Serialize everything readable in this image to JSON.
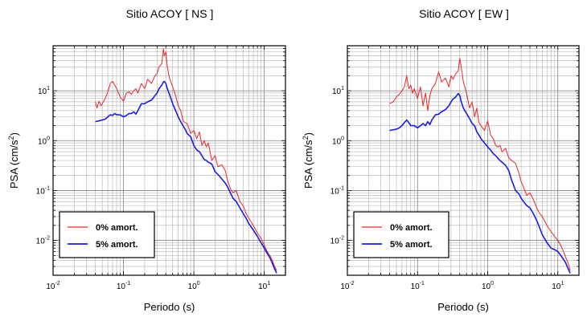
{
  "chart_data": [
    {
      "type": "line",
      "title": "Sitio ACOY [ NS ]",
      "xlabel": "Periodo (s)",
      "ylabel_main": "PSA (cm/s",
      "ylabel_exp": "2",
      "ylabel_close": ")",
      "xscale": "log",
      "yscale": "log",
      "xlim": [
        0.01,
        20
      ],
      "ylim": [
        0.002,
        80
      ],
      "grid": true,
      "legend_position": "bottom-left",
      "x_ticks": [
        {
          "base": "10",
          "exp": "-2",
          "value": 0.01
        },
        {
          "base": "10",
          "exp": "-1",
          "value": 0.1
        },
        {
          "base": "10",
          "exp": "0",
          "value": 1
        },
        {
          "base": "10",
          "exp": "1",
          "value": 10
        }
      ],
      "y_ticks": [
        {
          "base": "10",
          "exp": "-2",
          "value": 0.01
        },
        {
          "base": "10",
          "exp": "-1",
          "value": 0.1
        },
        {
          "base": "10",
          "exp": "0",
          "value": 1
        },
        {
          "base": "10",
          "exp": "1",
          "value": 10
        }
      ],
      "series": [
        {
          "name": "0% amort.",
          "color": "#e8262b",
          "x": [
            0.04,
            0.042,
            0.045,
            0.048,
            0.05,
            0.055,
            0.06,
            0.065,
            0.07,
            0.075,
            0.08,
            0.09,
            0.1,
            0.11,
            0.12,
            0.13,
            0.14,
            0.15,
            0.16,
            0.18,
            0.2,
            0.22,
            0.25,
            0.28,
            0.3,
            0.32,
            0.35,
            0.37,
            0.38,
            0.4,
            0.42,
            0.45,
            0.5,
            0.55,
            0.6,
            0.65,
            0.7,
            0.75,
            0.8,
            0.9,
            1.0,
            1.1,
            1.2,
            1.3,
            1.4,
            1.5,
            1.6,
            1.8,
            2.0,
            2.2,
            2.5,
            2.8,
            3.0,
            3.3,
            3.6,
            4.0,
            4.5,
            5.0,
            5.5,
            6.0,
            7.0,
            8.0,
            9.0,
            10.0,
            11.0,
            12.0,
            13.0,
            14.0,
            15.0
          ],
          "y": [
            6.0,
            4.5,
            6.2,
            5.0,
            5.5,
            7.0,
            9.5,
            14.0,
            15.5,
            13.0,
            11.0,
            7.5,
            6.2,
            9.0,
            9.5,
            8.5,
            10.0,
            11.0,
            9.0,
            14.0,
            11.0,
            17.0,
            14.0,
            20.0,
            22.0,
            30.0,
            35.0,
            70.0,
            50.0,
            60.0,
            30.0,
            18.0,
            12.0,
            8.0,
            5.0,
            4.0,
            2.5,
            2.3,
            2.2,
            1.4,
            1.6,
            1.1,
            1.5,
            0.8,
            1.0,
            0.75,
            0.9,
            0.4,
            0.5,
            0.3,
            0.33,
            0.25,
            0.16,
            0.11,
            0.09,
            0.1,
            0.06,
            0.05,
            0.035,
            0.028,
            0.02,
            0.014,
            0.011,
            0.008,
            0.006,
            0.005,
            0.004,
            0.003,
            0.0025
          ]
        },
        {
          "name": "5% amort.",
          "color": "#1c1ce0",
          "x": [
            0.04,
            0.045,
            0.05,
            0.055,
            0.06,
            0.065,
            0.07,
            0.075,
            0.08,
            0.09,
            0.1,
            0.11,
            0.12,
            0.13,
            0.14,
            0.15,
            0.16,
            0.18,
            0.2,
            0.22,
            0.25,
            0.28,
            0.3,
            0.32,
            0.35,
            0.37,
            0.38,
            0.4,
            0.42,
            0.45,
            0.5,
            0.55,
            0.6,
            0.65,
            0.7,
            0.75,
            0.8,
            0.9,
            1.0,
            1.1,
            1.2,
            1.3,
            1.4,
            1.5,
            1.6,
            1.8,
            2.0,
            2.2,
            2.5,
            2.8,
            3.0,
            3.3,
            3.6,
            4.0,
            4.5,
            5.0,
            5.5,
            6.0,
            7.0,
            8.0,
            9.0,
            10.0,
            11.0,
            12.0,
            13.0,
            14.0,
            15.0
          ],
          "y": [
            2.4,
            2.5,
            2.6,
            2.7,
            3.0,
            3.3,
            3.2,
            3.5,
            3.3,
            3.3,
            3.0,
            3.2,
            3.5,
            3.5,
            3.8,
            3.4,
            4.0,
            5.5,
            5.5,
            6.0,
            6.5,
            8.0,
            9.0,
            11.0,
            13.0,
            15.0,
            15.5,
            14.0,
            11.0,
            8.5,
            5.5,
            4.0,
            3.0,
            2.4,
            2.0,
            1.7,
            1.4,
            1.2,
            0.8,
            0.65,
            0.6,
            0.5,
            0.42,
            0.4,
            0.37,
            0.34,
            0.24,
            0.21,
            0.17,
            0.14,
            0.12,
            0.09,
            0.07,
            0.06,
            0.045,
            0.035,
            0.028,
            0.022,
            0.016,
            0.012,
            0.009,
            0.007,
            0.0055,
            0.0045,
            0.0035,
            0.0027,
            0.0022
          ]
        }
      ]
    },
    {
      "type": "line",
      "title": "Sitio ACOY [ EW ]",
      "xlabel": "Periodo (s)",
      "ylabel_main": "PSA (cm/s",
      "ylabel_exp": "2",
      "ylabel_close": ")",
      "xscale": "log",
      "yscale": "log",
      "xlim": [
        0.01,
        20
      ],
      "ylim": [
        0.002,
        80
      ],
      "grid": true,
      "legend_position": "bottom-left",
      "x_ticks": [
        {
          "base": "10",
          "exp": "-2",
          "value": 0.01
        },
        {
          "base": "10",
          "exp": "-1",
          "value": 0.1
        },
        {
          "base": "10",
          "exp": "0",
          "value": 1
        },
        {
          "base": "10",
          "exp": "1",
          "value": 10
        }
      ],
      "y_ticks": [
        {
          "base": "10",
          "exp": "-2",
          "value": 0.01
        },
        {
          "base": "10",
          "exp": "-1",
          "value": 0.1
        },
        {
          "base": "10",
          "exp": "0",
          "value": 1
        },
        {
          "base": "10",
          "exp": "1",
          "value": 10
        }
      ],
      "series": [
        {
          "name": "0% amort.",
          "color": "#e8262b",
          "x": [
            0.04,
            0.045,
            0.05,
            0.055,
            0.06,
            0.065,
            0.07,
            0.075,
            0.08,
            0.085,
            0.09,
            0.1,
            0.11,
            0.12,
            0.13,
            0.14,
            0.15,
            0.16,
            0.18,
            0.2,
            0.22,
            0.25,
            0.28,
            0.3,
            0.32,
            0.35,
            0.38,
            0.4,
            0.42,
            0.45,
            0.5,
            0.55,
            0.6,
            0.65,
            0.7,
            0.75,
            0.8,
            0.9,
            1.0,
            1.1,
            1.2,
            1.3,
            1.4,
            1.5,
            1.6,
            1.8,
            2.0,
            2.2,
            2.5,
            2.8,
            3.0,
            3.3,
            3.6,
            4.0,
            4.5,
            5.0,
            5.5,
            6.0,
            7.0,
            8.0,
            9.0,
            10.0,
            11.0,
            12.0,
            13.0,
            14.0,
            15.0
          ],
          "y": [
            5.5,
            6.0,
            7.5,
            8.5,
            10.0,
            12.0,
            20.0,
            11.0,
            13.0,
            9.0,
            11.0,
            7.0,
            12.0,
            5.0,
            9.0,
            4.0,
            8.0,
            11.0,
            14.0,
            24.0,
            15.0,
            18.0,
            12.0,
            20.0,
            17.0,
            22.0,
            25.0,
            45.0,
            30.0,
            15.0,
            9.0,
            4.5,
            6.0,
            3.0,
            4.5,
            2.3,
            2.0,
            1.6,
            2.5,
            1.3,
            1.1,
            0.8,
            0.75,
            0.8,
            0.6,
            0.7,
            0.45,
            0.4,
            0.35,
            0.22,
            0.15,
            0.11,
            0.08,
            0.09,
            0.065,
            0.045,
            0.035,
            0.03,
            0.02,
            0.015,
            0.012,
            0.01,
            0.008,
            0.006,
            0.0045,
            0.0035,
            0.0025
          ]
        },
        {
          "name": "5% amort.",
          "color": "#1c1ce0",
          "x": [
            0.04,
            0.045,
            0.05,
            0.055,
            0.06,
            0.065,
            0.07,
            0.075,
            0.08,
            0.09,
            0.1,
            0.11,
            0.12,
            0.13,
            0.14,
            0.15,
            0.16,
            0.18,
            0.2,
            0.22,
            0.25,
            0.28,
            0.3,
            0.32,
            0.35,
            0.38,
            0.4,
            0.42,
            0.45,
            0.5,
            0.55,
            0.6,
            0.65,
            0.7,
            0.75,
            0.8,
            0.9,
            1.0,
            1.1,
            1.2,
            1.3,
            1.4,
            1.5,
            1.6,
            1.8,
            2.0,
            2.2,
            2.5,
            2.8,
            3.0,
            3.3,
            3.6,
            4.0,
            4.5,
            5.0,
            5.5,
            6.0,
            7.0,
            8.0,
            9.0,
            10.0,
            11.0,
            12.0,
            13.0,
            14.0,
            15.0
          ],
          "y": [
            1.6,
            1.65,
            1.7,
            1.8,
            2.0,
            2.3,
            2.6,
            2.3,
            2.0,
            2.0,
            1.8,
            2.0,
            2.2,
            2.0,
            2.4,
            2.1,
            2.6,
            3.3,
            3.4,
            3.8,
            4.2,
            5.0,
            6.0,
            6.8,
            7.5,
            8.8,
            8.0,
            6.0,
            4.5,
            3.5,
            2.8,
            2.2,
            2.0,
            1.5,
            1.3,
            1.1,
            0.9,
            0.75,
            0.65,
            0.55,
            0.5,
            0.44,
            0.4,
            0.37,
            0.32,
            0.25,
            0.16,
            0.1,
            0.085,
            0.07,
            0.058,
            0.05,
            0.045,
            0.034,
            0.025,
            0.018,
            0.013,
            0.009,
            0.007,
            0.0065,
            0.006,
            0.005,
            0.0042,
            0.0035,
            0.0027,
            0.0022
          ]
        }
      ]
    }
  ]
}
